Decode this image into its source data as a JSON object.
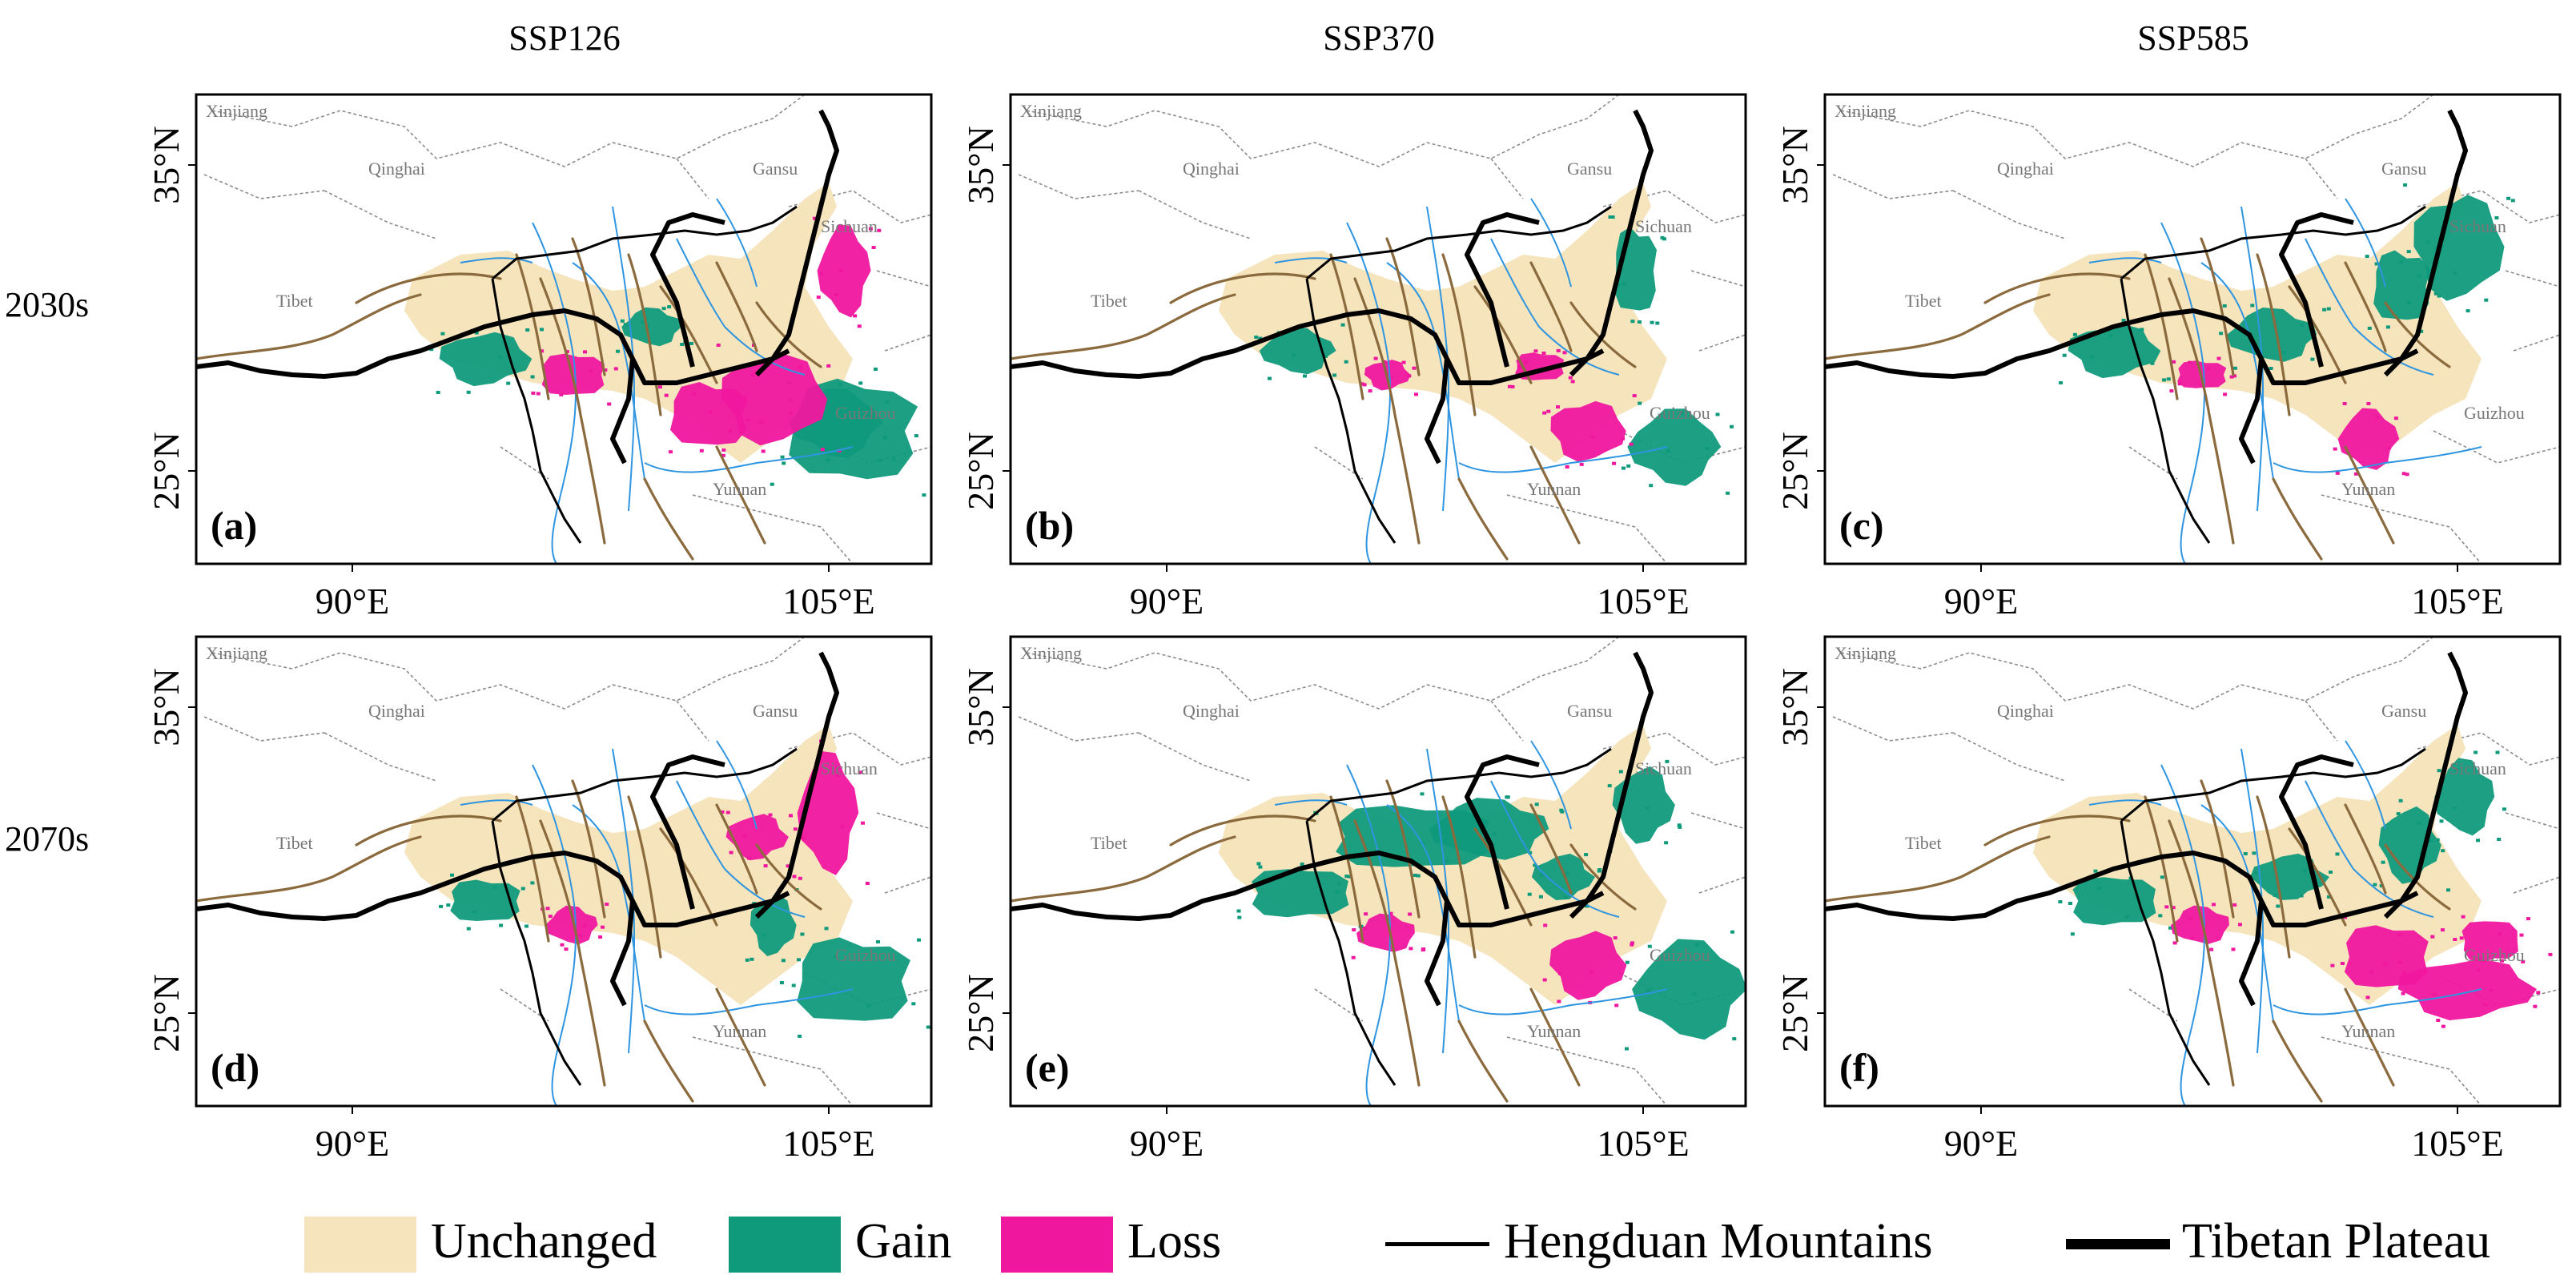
{
  "columns": [
    {
      "label": "SSP126"
    },
    {
      "label": "SSP370"
    },
    {
      "label": "SSP585"
    }
  ],
  "rows": [
    {
      "label": "2030s"
    },
    {
      "label": "2070s"
    }
  ],
  "panels": [
    {
      "letter": "(a)",
      "column": "SSP126",
      "row": "2030s"
    },
    {
      "letter": "(b)",
      "column": "SSP370",
      "row": "2030s"
    },
    {
      "letter": "(c)",
      "column": "SSP585",
      "row": "2030s"
    },
    {
      "letter": "(d)",
      "column": "SSP126",
      "row": "2070s"
    },
    {
      "letter": "(e)",
      "column": "SSP370",
      "row": "2070s"
    },
    {
      "letter": "(f)",
      "column": "SSP585",
      "row": "2070s"
    }
  ],
  "axes": {
    "x_ticks": [
      "90°E",
      "105°E"
    ],
    "y_ticks": [
      "35°N",
      "25°N"
    ]
  },
  "provinces": [
    "Xinjiang",
    "Qinghai",
    "Gansu",
    "Sichuan",
    "Tibet",
    "Guizhou",
    "Yunnan"
  ],
  "legend": {
    "unchanged": {
      "label": "Unchanged",
      "color": "#f5e4bc"
    },
    "gain": {
      "label": "Gain",
      "color": "#109a7c"
    },
    "loss": {
      "label": "Loss",
      "color": "#f0179f"
    },
    "hengduan": {
      "label": "Hengduan Mountains"
    },
    "tibetan": {
      "label": "Tibetan Plateau"
    }
  },
  "colors": {
    "unchanged": "#f5e4bc",
    "gain": "#109a7c",
    "loss": "#f0179f",
    "river": "#2f95e0",
    "fault": "#8b6a3e",
    "province_border": "#8c8c8c"
  }
}
